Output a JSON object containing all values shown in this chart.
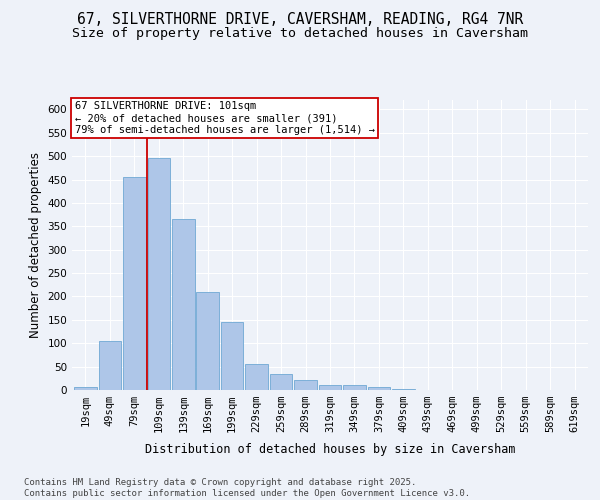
{
  "title_line1": "67, SILVERTHORNE DRIVE, CAVERSHAM, READING, RG4 7NR",
  "title_line2": "Size of property relative to detached houses in Caversham",
  "xlabel": "Distribution of detached houses by size in Caversham",
  "ylabel": "Number of detached properties",
  "bar_labels": [
    "19sqm",
    "49sqm",
    "79sqm",
    "109sqm",
    "139sqm",
    "169sqm",
    "199sqm",
    "229sqm",
    "259sqm",
    "289sqm",
    "319sqm",
    "349sqm",
    "379sqm",
    "409sqm",
    "439sqm",
    "469sqm",
    "499sqm",
    "529sqm",
    "559sqm",
    "589sqm",
    "619sqm"
  ],
  "bar_values": [
    6,
    105,
    455,
    495,
    365,
    210,
    145,
    55,
    35,
    22,
    11,
    10,
    7,
    2,
    1,
    1,
    1,
    0,
    0,
    0,
    1
  ],
  "bar_color": "#aec6e8",
  "bar_edgecolor": "#6fa8d4",
  "vline_x": 2.5,
  "annotation_line1": "67 SILVERTHORNE DRIVE: 101sqm",
  "annotation_line2": "← 20% of detached houses are smaller (391)",
  "annotation_line3": "79% of semi-detached houses are larger (1,514) →",
  "annotation_box_color": "#ffffff",
  "annotation_box_edgecolor": "#cc0000",
  "vline_color": "#cc0000",
  "ylim": [
    0,
    620
  ],
  "yticks": [
    0,
    50,
    100,
    150,
    200,
    250,
    300,
    350,
    400,
    450,
    500,
    550,
    600
  ],
  "background_color": "#eef2f9",
  "footer_line1": "Contains HM Land Registry data © Crown copyright and database right 2025.",
  "footer_line2": "Contains public sector information licensed under the Open Government Licence v3.0.",
  "grid_color": "#ffffff",
  "title_fontsize": 10.5,
  "subtitle_fontsize": 9.5,
  "axis_label_fontsize": 8.5,
  "tick_fontsize": 7.5,
  "annotation_fontsize": 7.5,
  "footer_fontsize": 6.5
}
